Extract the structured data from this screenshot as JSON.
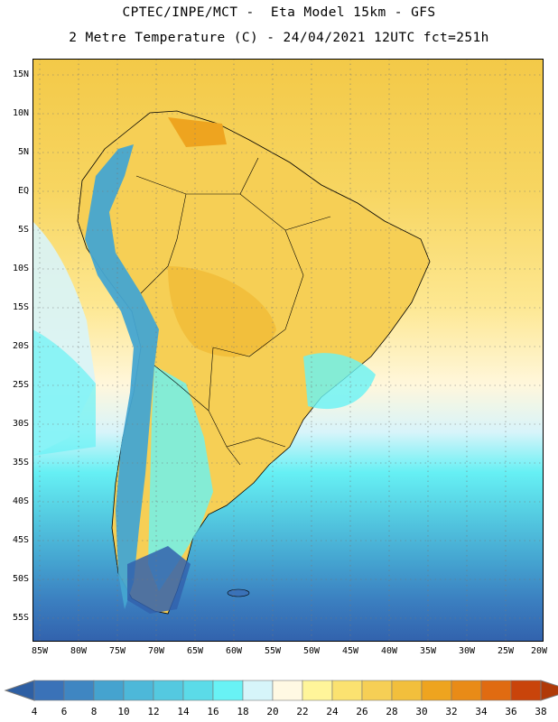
{
  "header": {
    "line1": "CPTEC/INPE/MCT -  Eta Model 15km - GFS",
    "line2": "2 Metre Temperature (C) - 24/04/2021 12UTC fct=251h"
  },
  "map": {
    "region": "South America",
    "lat_labels": [
      "15N",
      "10N",
      "5N",
      "EQ",
      "5S",
      "10S",
      "15S",
      "20S",
      "25S",
      "30S",
      "35S",
      "40S",
      "45S",
      "50S",
      "55S"
    ],
    "lon_labels": [
      "85W",
      "80W",
      "75W",
      "70W",
      "65W",
      "60W",
      "55W",
      "50W",
      "45W",
      "40W",
      "35W",
      "30W",
      "25W",
      "20W"
    ]
  },
  "colorbar": {
    "labels": [
      "4",
      "6",
      "8",
      "10",
      "12",
      "14",
      "16",
      "18",
      "20",
      "22",
      "24",
      "26",
      "28",
      "30",
      "32",
      "34",
      "36",
      "38"
    ],
    "colors": [
      "#3a72b8",
      "#3f86c2",
      "#45a3cf",
      "#4db8d9",
      "#54c9e0",
      "#5bdbe8",
      "#68f2f5",
      "#d6f5fa",
      "#fff9e3",
      "#fff59a",
      "#fbe270",
      "#f6cf55",
      "#f2bf3c",
      "#eea41f",
      "#e98b17",
      "#e06b11",
      "#c9440b"
    ],
    "low_color": "#2e5fa3",
    "high_color": "#b03a08"
  }
}
